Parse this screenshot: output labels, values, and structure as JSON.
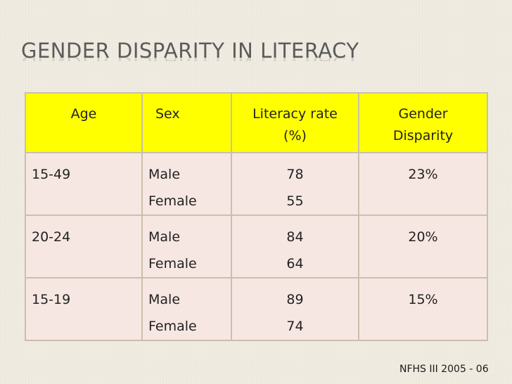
{
  "slide": {
    "title": "GENDER DISPARITY IN LITERACY",
    "source": "NFHS III 2005 - 06"
  },
  "colors": {
    "header_bg": "#ffff00",
    "row_bg": "#f7e7e2",
    "title_color": "#5b5b5b"
  },
  "table": {
    "headers": {
      "age": "Age",
      "sex": "Sex",
      "rate_line1": "Literacy rate",
      "rate_line2": "(%)",
      "gap_line1": "Gender",
      "gap_line2": "Disparity"
    },
    "rows": [
      {
        "age": "15-49",
        "sex_m": "Male",
        "sex_f": "Female",
        "rate_m": "78",
        "rate_f": "55",
        "gap": "23%"
      },
      {
        "age": "20-24",
        "sex_m": "Male",
        "sex_f": "Female",
        "rate_m": "84",
        "rate_f": "64",
        "gap": "20%"
      },
      {
        "age": "15-19",
        "sex_m": "Male",
        "sex_f": "Female",
        "rate_m": "89",
        "rate_f": "74",
        "gap": "15%"
      }
    ]
  }
}
